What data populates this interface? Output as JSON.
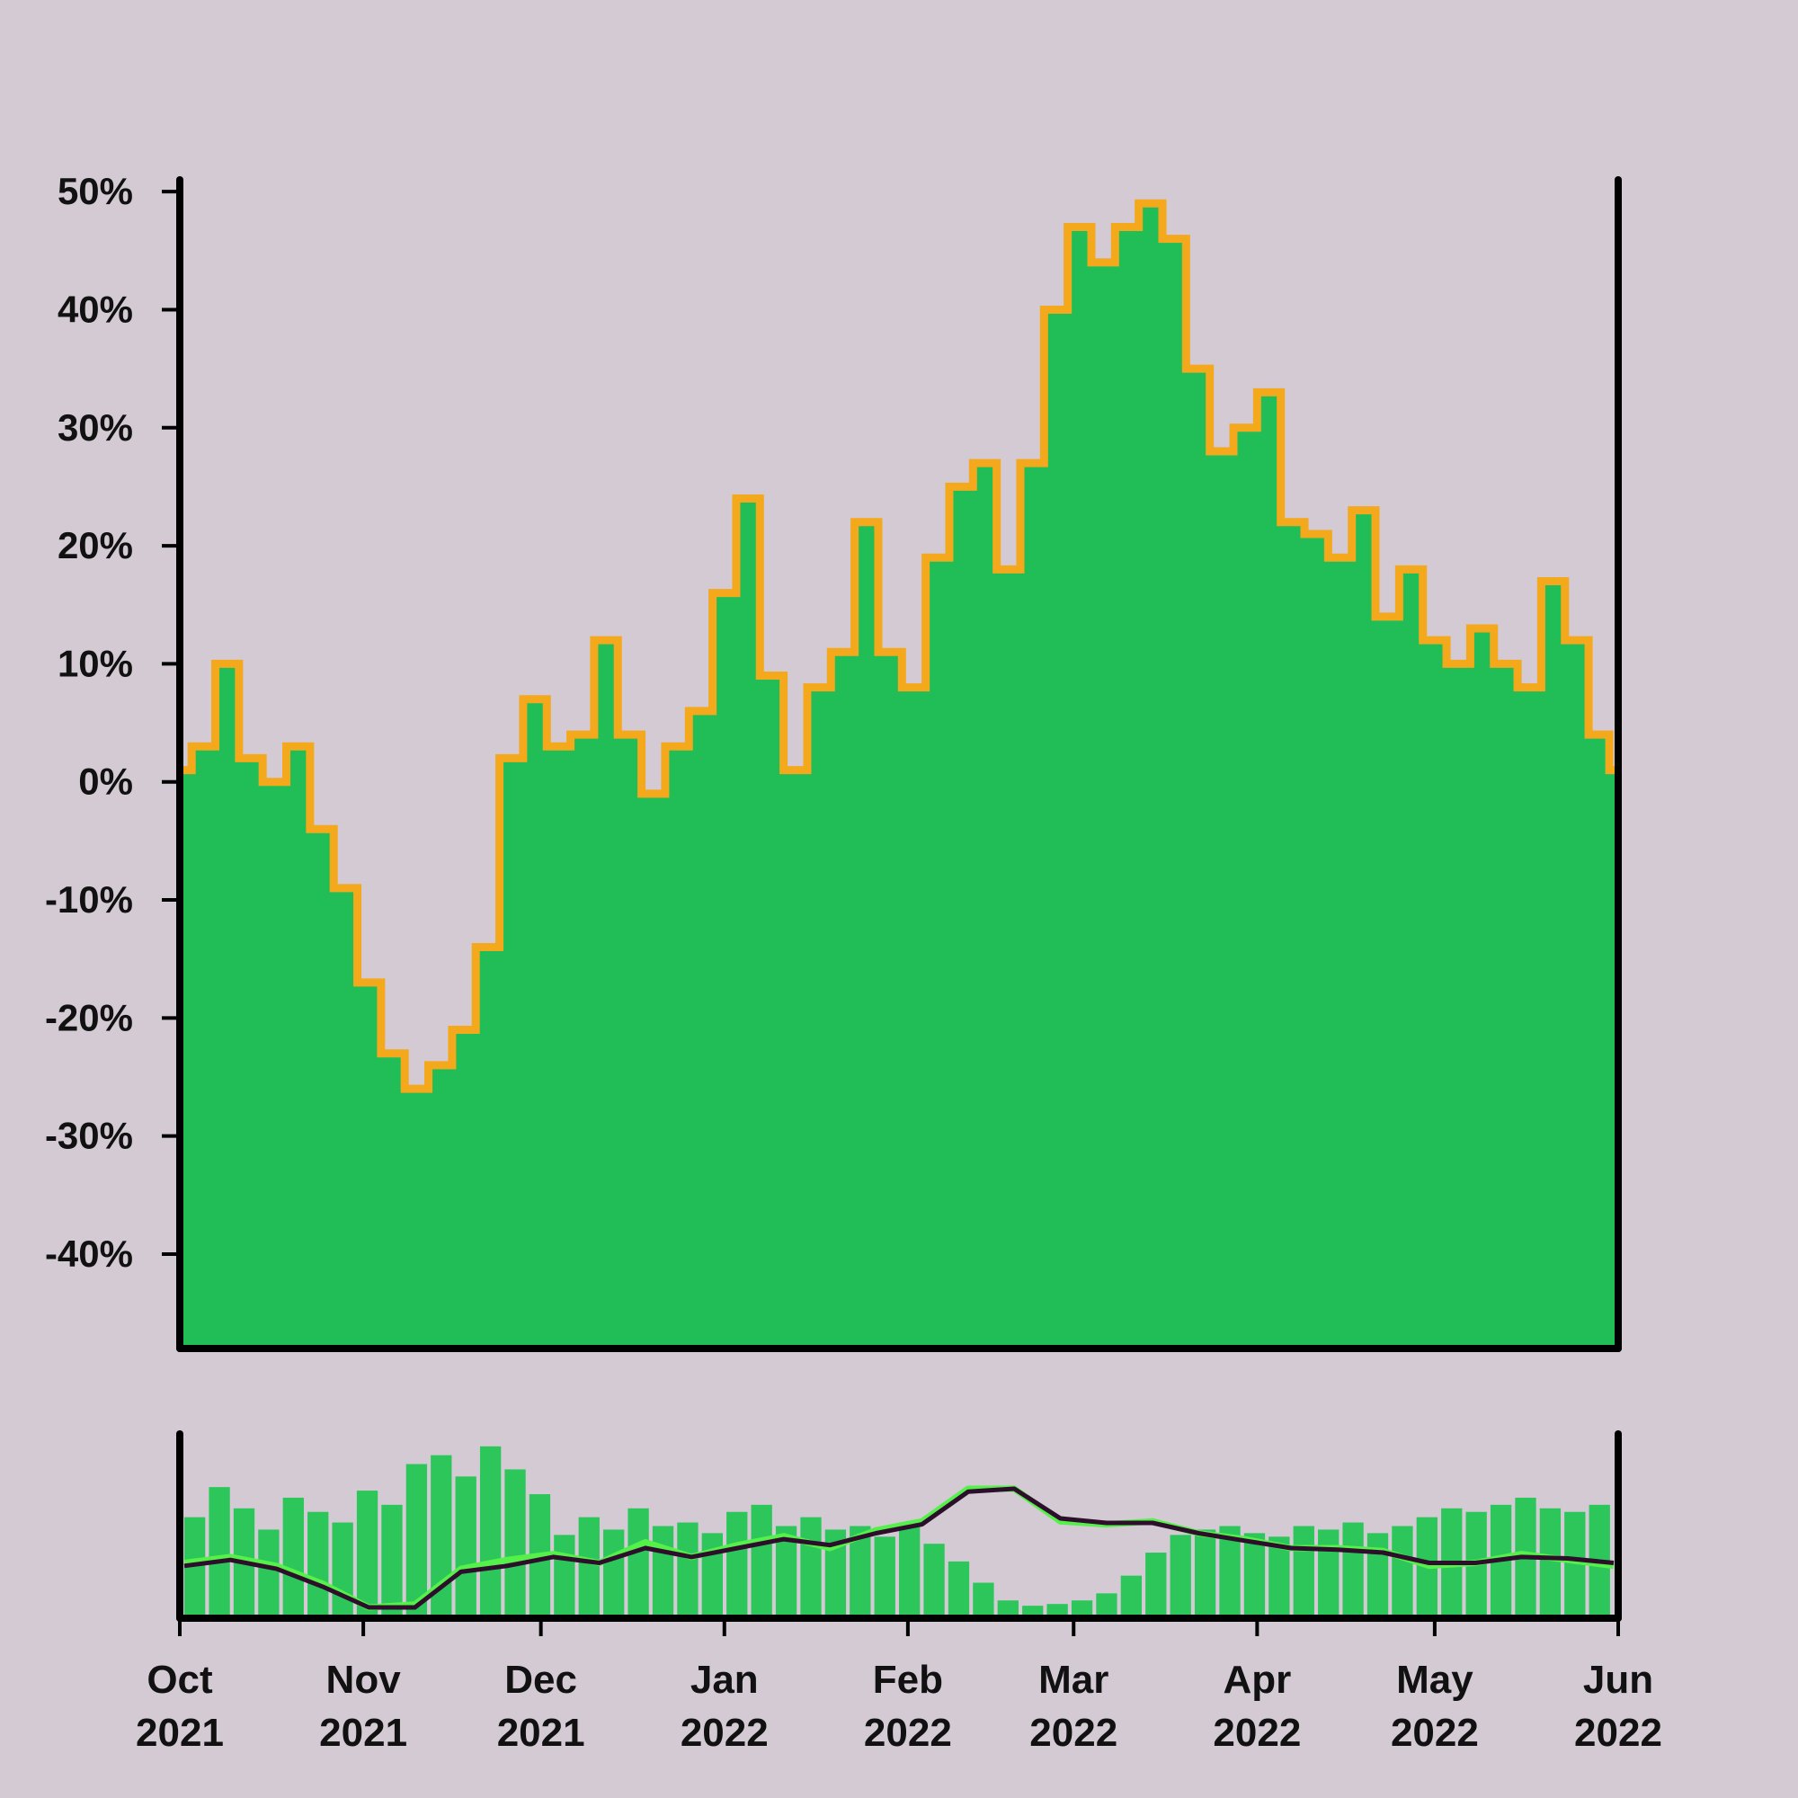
{
  "colors": {
    "background": "#d3cad3",
    "area_fill": "#21be57",
    "range_band": "#f4a81c",
    "volume_bars": "#2cc65a",
    "fast_average": "#55f04a",
    "slow_average": "#2d0f2c",
    "axis": "#000000"
  },
  "chart_data": [
    {
      "type": "area",
      "title": "",
      "xlabel": "",
      "ylabel": "",
      "x_range": [
        "2021-10-01",
        "2022-06-01"
      ],
      "ylim": [
        -48,
        51
      ],
      "y_ticks": [
        -40,
        -30,
        -20,
        -10,
        0,
        10,
        20,
        30,
        40,
        50
      ],
      "y_tick_labels": [
        "-40%",
        "-30%",
        "-20%",
        "-10%",
        "0%",
        "10%",
        "20%",
        "30%",
        "40%",
        "50%"
      ],
      "grid": false,
      "legend": "none",
      "series": [
        {
          "x": [
            "2021-10-01",
            "2021-10-05",
            "2021-10-09",
            "2021-10-13",
            "2021-10-17",
            "2021-10-21",
            "2021-10-25",
            "2021-10-29",
            "2021-11-02",
            "2021-11-06",
            "2021-11-10",
            "2021-11-14",
            "2021-11-18",
            "2021-11-22",
            "2021-11-26",
            "2021-11-30",
            "2021-12-04",
            "2021-12-08",
            "2021-12-12",
            "2021-12-16",
            "2021-12-20",
            "2021-12-24",
            "2021-12-28",
            "2022-01-01",
            "2022-01-05",
            "2022-01-09",
            "2022-01-13",
            "2022-01-17",
            "2022-01-21",
            "2022-01-25",
            "2022-01-29",
            "2022-02-02",
            "2022-02-06",
            "2022-02-10",
            "2022-02-14",
            "2022-02-18",
            "2022-02-22",
            "2022-02-26",
            "2022-03-02",
            "2022-03-06",
            "2022-03-10",
            "2022-03-14",
            "2022-03-18",
            "2022-03-22",
            "2022-03-26",
            "2022-03-30",
            "2022-04-03",
            "2022-04-07",
            "2022-04-11",
            "2022-04-15",
            "2022-04-19",
            "2022-04-23",
            "2022-04-27",
            "2022-05-01",
            "2022-05-05",
            "2022-05-09",
            "2022-05-13",
            "2022-05-17",
            "2022-05-21",
            "2022-05-25",
            "2022-05-29",
            "2022-06-01"
          ],
          "values": [
            1,
            3,
            10,
            2,
            0,
            3,
            -4,
            -9,
            -17,
            -23,
            -26,
            -24,
            -21,
            -14,
            2,
            7,
            3,
            4,
            12,
            4,
            -1,
            3,
            6,
            16,
            24,
            9,
            1,
            8,
            11,
            22,
            11,
            8,
            19,
            25,
            27,
            18,
            27,
            40,
            47,
            44,
            47,
            49,
            46,
            35,
            28,
            30,
            33,
            22,
            21,
            19,
            23,
            14,
            18,
            12,
            10,
            13,
            10,
            8,
            17,
            12,
            4,
            1
          ]
        }
      ]
    },
    {
      "type": "bar",
      "title": "",
      "x_range": [
        "2021-10-01",
        "2022-06-01"
      ],
      "x_ticks": [
        "2021-10-01",
        "2021-11-01",
        "2021-12-01",
        "2022-01-01",
        "2022-02-01",
        "2022-03-01",
        "2022-04-01",
        "2022-05-01",
        "2022-06-01"
      ],
      "x_tick_labels": [
        [
          "Oct",
          "2021"
        ],
        [
          "Nov",
          "2021"
        ],
        [
          "Dec",
          "2021"
        ],
        [
          "Jan",
          "2022"
        ],
        [
          "Feb",
          "2022"
        ],
        [
          "Mar",
          "2022"
        ],
        [
          "Apr",
          "2022"
        ],
        [
          "May",
          "2022"
        ],
        [
          "Jun",
          "2022"
        ]
      ],
      "grid": false,
      "legend": "none",
      "y_axis_labels": false,
      "series": [
        {
          "type": "bar",
          "relative_values": [
            0.55,
            0.72,
            0.6,
            0.48,
            0.66,
            0.58,
            0.52,
            0.7,
            0.62,
            0.85,
            0.9,
            0.78,
            0.95,
            0.82,
            0.68,
            0.45,
            0.55,
            0.48,
            0.6,
            0.5,
            0.52,
            0.46,
            0.58,
            0.62,
            0.5,
            0.55,
            0.48,
            0.5,
            0.44,
            0.52,
            0.4,
            0.3,
            0.18,
            0.08,
            0.05,
            0.06,
            0.08,
            0.12,
            0.22,
            0.35,
            0.45,
            0.48,
            0.5,
            0.46,
            0.44,
            0.5,
            0.48,
            0.52,
            0.46,
            0.5,
            0.55,
            0.6,
            0.58,
            0.62,
            0.66,
            0.6,
            0.58,
            0.62
          ]
        },
        {
          "type": "line",
          "relative_values": [
            0.3,
            0.34,
            0.28,
            0.16,
            0.0,
            0.02,
            0.26,
            0.32,
            0.36,
            0.3,
            0.44,
            0.34,
            0.42,
            0.48,
            0.4,
            0.52,
            0.58,
            0.8,
            0.8,
            0.58,
            0.56,
            0.58,
            0.5,
            0.46,
            0.4,
            0.4,
            0.38,
            0.28,
            0.3,
            0.36,
            0.32,
            0.28
          ]
        },
        {
          "type": "line",
          "relative_values": [
            0.28,
            0.32,
            0.26,
            0.14,
            0.0,
            0.0,
            0.24,
            0.28,
            0.34,
            0.3,
            0.4,
            0.34,
            0.4,
            0.46,
            0.42,
            0.5,
            0.56,
            0.78,
            0.8,
            0.6,
            0.57,
            0.57,
            0.5,
            0.45,
            0.4,
            0.39,
            0.37,
            0.3,
            0.3,
            0.34,
            0.33,
            0.3
          ]
        }
      ]
    }
  ]
}
